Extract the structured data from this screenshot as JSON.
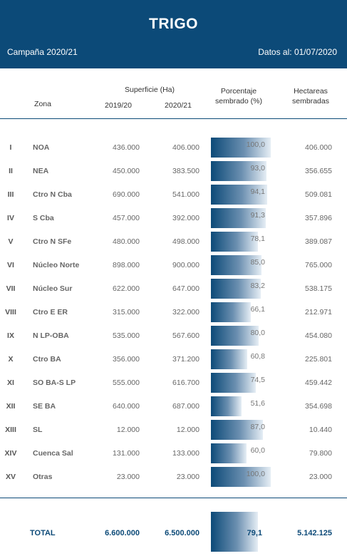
{
  "header": {
    "title": "TRIGO",
    "campaign": "Campaña 2020/21",
    "date": "Datos al: 01/07/2020"
  },
  "columns": {
    "zona": "Zona",
    "superficie": "Superficie (Ha)",
    "y1": "2019/20",
    "y2": "2020/21",
    "porcentaje_l1": "Porcentaje",
    "porcentaje_l2": "sembrado (%)",
    "hectareas_l1": "Hectareas",
    "hectareas_l2": "sembradas"
  },
  "rows": [
    {
      "roman": "I",
      "zona": "NOA",
      "s1": "436.000",
      "s2": "406.000",
      "pct": "100,0",
      "pct_value": 100.0,
      "ha": "406.000"
    },
    {
      "roman": "II",
      "zona": "NEA",
      "s1": "450.000",
      "s2": "383.500",
      "pct": "93,0",
      "pct_value": 93.0,
      "ha": "356.655"
    },
    {
      "roman": "III",
      "zona": "Ctro N Cba",
      "s1": "690.000",
      "s2": "541.000",
      "pct": "94,1",
      "pct_value": 94.1,
      "ha": "509.081"
    },
    {
      "roman": "IV",
      "zona": "S Cba",
      "s1": "457.000",
      "s2": "392.000",
      "pct": "91,3",
      "pct_value": 91.3,
      "ha": "357.896"
    },
    {
      "roman": "V",
      "zona": "Ctro N SFe",
      "s1": "480.000",
      "s2": "498.000",
      "pct": "78,1",
      "pct_value": 78.1,
      "ha": "389.087"
    },
    {
      "roman": "VI",
      "zona": "Núcleo Norte",
      "s1": "898.000",
      "s2": "900.000",
      "pct": "85,0",
      "pct_value": 85.0,
      "ha": "765.000"
    },
    {
      "roman": "VII",
      "zona": "Núcleo Sur",
      "s1": "622.000",
      "s2": "647.000",
      "pct": "83,2",
      "pct_value": 83.2,
      "ha": "538.175"
    },
    {
      "roman": "VIII",
      "zona": "Ctro E ER",
      "s1": "315.000",
      "s2": "322.000",
      "pct": "66,1",
      "pct_value": 66.1,
      "ha": "212.971"
    },
    {
      "roman": "IX",
      "zona": "N LP-OBA",
      "s1": "535.000",
      "s2": "567.600",
      "pct": "80,0",
      "pct_value": 80.0,
      "ha": "454.080"
    },
    {
      "roman": "X",
      "zona": "Ctro BA",
      "s1": "356.000",
      "s2": "371.200",
      "pct": "60,8",
      "pct_value": 60.8,
      "ha": "225.801"
    },
    {
      "roman": "XI",
      "zona": "SO BA-S LP",
      "s1": "555.000",
      "s2": "616.700",
      "pct": "74,5",
      "pct_value": 74.5,
      "ha": "459.442"
    },
    {
      "roman": "XII",
      "zona": "SE BA",
      "s1": "640.000",
      "s2": "687.000",
      "pct": "51,6",
      "pct_value": 51.6,
      "ha": "354.698"
    },
    {
      "roman": "XIII",
      "zona": "SL",
      "s1": "12.000",
      "s2": "12.000",
      "pct": "87,0",
      "pct_value": 87.0,
      "ha": "10.440"
    },
    {
      "roman": "XIV",
      "zona": "Cuenca Sal",
      "s1": "131.000",
      "s2": "133.000",
      "pct": "60,0",
      "pct_value": 60.0,
      "ha": "79.800"
    },
    {
      "roman": "XV",
      "zona": "Otras",
      "s1": "23.000",
      "s2": "23.000",
      "pct": "100,0",
      "pct_value": 100.0,
      "ha": "23.000"
    }
  ],
  "total": {
    "label": "TOTAL",
    "s1": "6.600.000",
    "s2": "6.500.000",
    "pct": "79,1",
    "pct_value": 79.1,
    "ha": "5.142.125"
  },
  "colors": {
    "header_bg": "#0c4a78",
    "total_text": "#0c4a78"
  }
}
